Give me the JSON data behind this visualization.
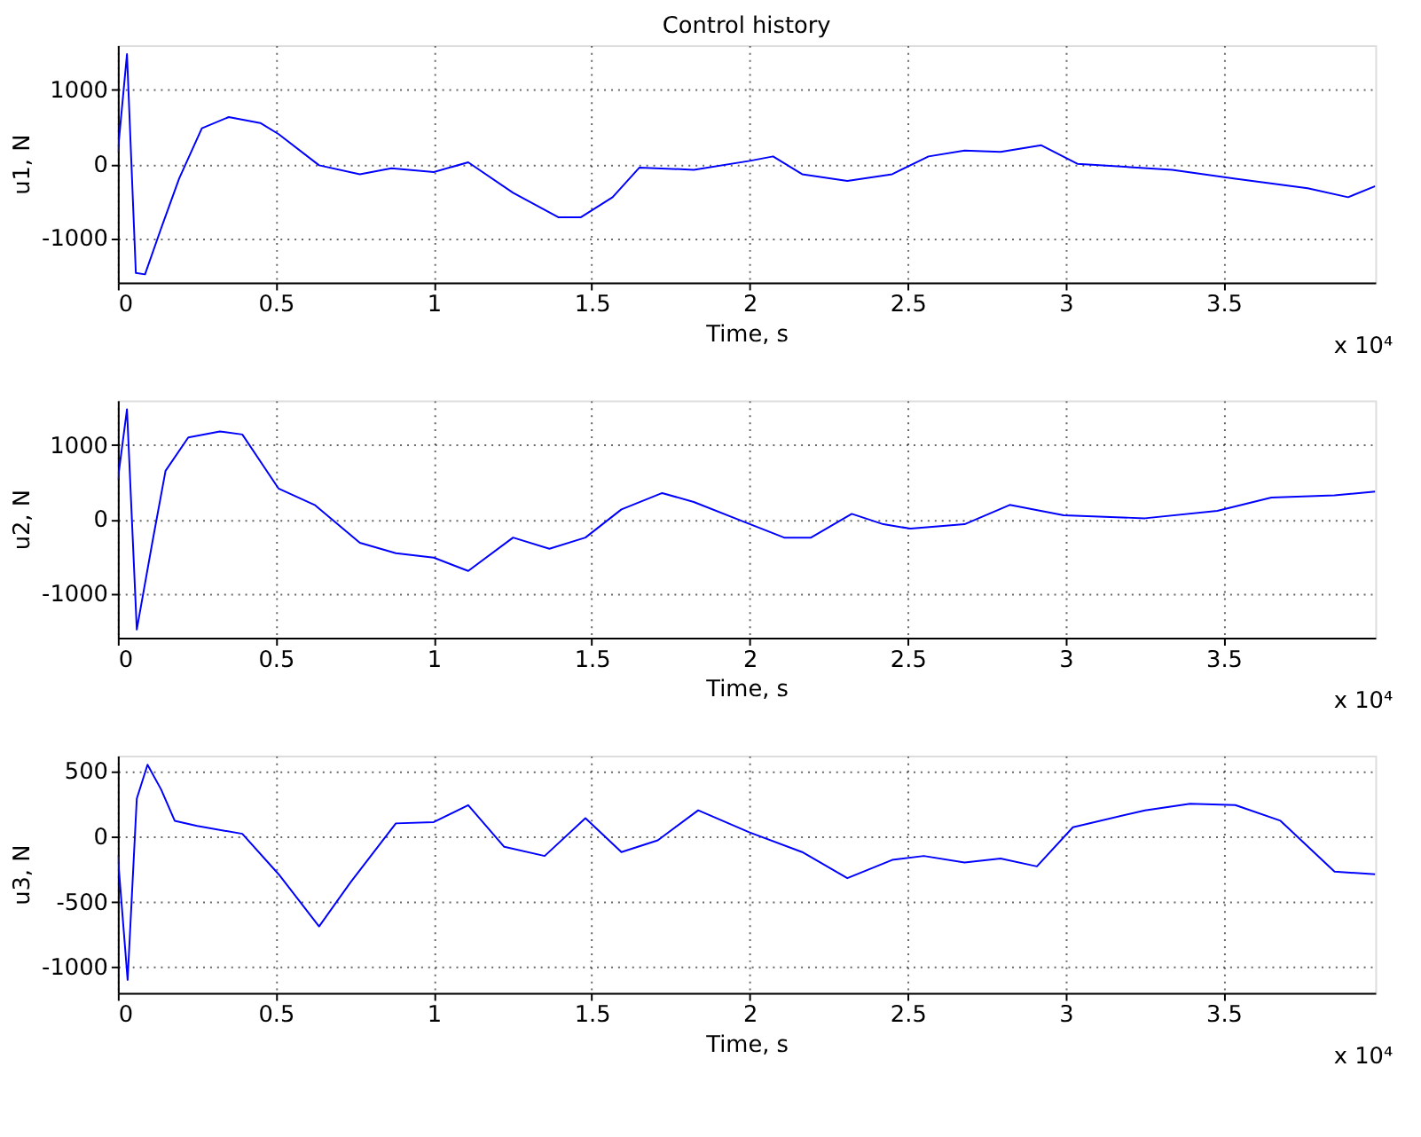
{
  "chart_data": [
    {
      "type": "line",
      "title": "Control history",
      "xlabel": "Time, s",
      "ylabel": "u1, N",
      "annotations": [
        "x 10⁴"
      ],
      "xlim": [
        0,
        3.98
      ],
      "xticks": [
        0,
        0.5,
        1,
        1.5,
        2,
        2.5,
        3,
        3.5
      ],
      "ylim": [
        -1600,
        1600
      ],
      "yticks": [
        -1000,
        0,
        1000
      ],
      "grid": true,
      "series": [
        {
          "color": "#0000ff",
          "x": [
            0,
            0.029,
            0.057,
            0.086,
            0.137,
            0.194,
            0.266,
            0.351,
            0.451,
            0.509,
            0.637,
            0.766,
            0.866,
            1.0,
            1.109,
            1.251,
            1.394,
            1.466,
            1.566,
            1.651,
            1.823,
            2.0,
            2.074,
            2.166,
            2.309,
            2.451,
            2.566,
            2.68,
            2.794,
            2.923,
            3.037,
            3.337,
            3.537,
            3.766,
            3.894,
            3.98
          ],
          "values": [
            160,
            1480,
            -1470,
            -1490,
            -870,
            -200,
            480,
            630,
            550,
            400,
            -20,
            -140,
            -60,
            -110,
            20,
            -390,
            -720,
            -720,
            -450,
            -50,
            -80,
            40,
            100,
            -140,
            -230,
            -140,
            100,
            180,
            160,
            250,
            0,
            -80,
            -200,
            -330,
            -450,
            -300
          ]
        }
      ]
    },
    {
      "type": "line",
      "xlabel": "Time, s",
      "ylabel": "u2, N",
      "annotations": [
        "x 10⁴"
      ],
      "xlim": [
        0,
        3.98
      ],
      "xticks": [
        0,
        0.5,
        1,
        1.5,
        2,
        2.5,
        3,
        3.5
      ],
      "ylim": [
        -1600,
        1600
      ],
      "yticks": [
        -1000,
        0,
        1000
      ],
      "grid": true,
      "series": [
        {
          "color": "#0000ff",
          "x": [
            0,
            0.029,
            0.06,
            0.109,
            0.151,
            0.223,
            0.323,
            0.394,
            0.509,
            0.623,
            0.766,
            0.88,
            1.0,
            1.109,
            1.251,
            1.366,
            1.48,
            1.594,
            1.723,
            1.823,
            1.966,
            2.109,
            2.194,
            2.323,
            2.423,
            2.509,
            2.68,
            2.823,
            2.994,
            3.251,
            3.48,
            3.651,
            3.851,
            3.98
          ],
          "values": [
            530,
            1480,
            -1490,
            -320,
            650,
            1100,
            1180,
            1140,
            410,
            190,
            -320,
            -460,
            -520,
            -700,
            -250,
            -400,
            -250,
            130,
            350,
            230,
            -10,
            -250,
            -250,
            70,
            -70,
            -130,
            -70,
            190,
            50,
            10,
            110,
            290,
            320,
            370
          ]
        }
      ]
    },
    {
      "type": "line",
      "xlabel": "Time, s",
      "ylabel": "u3, N",
      "annotations": [
        "x 10⁴"
      ],
      "xlim": [
        0,
        3.98
      ],
      "xticks": [
        0,
        0.5,
        1,
        1.5,
        2,
        2.5,
        3,
        3.5
      ],
      "ylim": [
        -1200,
        620
      ],
      "yticks": [
        -1000,
        -500,
        0,
        500
      ],
      "grid": true,
      "series": [
        {
          "color": "#0000ff",
          "x": [
            0,
            0.031,
            0.06,
            0.094,
            0.137,
            0.18,
            0.251,
            0.394,
            0.509,
            0.637,
            0.737,
            0.88,
            1.0,
            1.109,
            1.223,
            1.351,
            1.48,
            1.594,
            1.709,
            1.837,
            2.0,
            2.166,
            2.309,
            2.451,
            2.551,
            2.68,
            2.794,
            2.909,
            3.023,
            3.251,
            3.394,
            3.537,
            3.68,
            3.851,
            3.98
          ],
          "values": [
            -150,
            -1100,
            290,
            550,
            360,
            120,
            80,
            20,
            -290,
            -690,
            -350,
            100,
            110,
            240,
            -80,
            -150,
            140,
            -120,
            -30,
            200,
            30,
            -120,
            -320,
            -180,
            -150,
            -200,
            -170,
            -230,
            70,
            200,
            250,
            240,
            120,
            -270,
            -290
          ]
        }
      ]
    }
  ]
}
